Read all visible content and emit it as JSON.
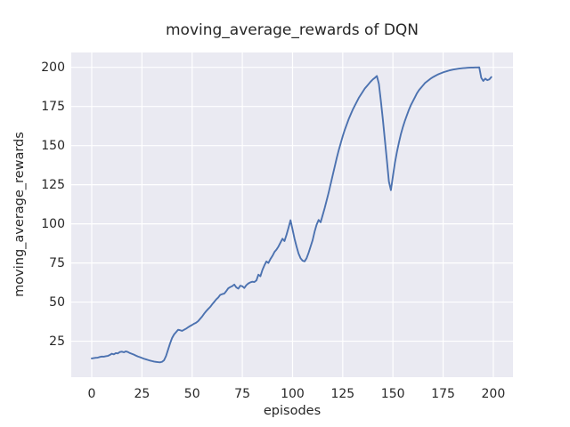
{
  "chart_data": {
    "type": "line",
    "title": "moving_average_rewards of DQN",
    "xlabel": "episodes",
    "ylabel": "moving_average_rewards",
    "xlim": [
      -10.2,
      209.8
    ],
    "ylim": [
      2,
      209.5
    ],
    "xticks": [
      0,
      25,
      50,
      75,
      100,
      125,
      150,
      175,
      200
    ],
    "yticks": [
      25,
      50,
      75,
      100,
      125,
      150,
      175,
      200
    ],
    "grid": true,
    "legend_position": "none",
    "style": {
      "plot_bg": "#EAEAF2",
      "grid_color": "#FFFFFF",
      "line_color": "#4C72B0",
      "text_color": "#262626",
      "line_width": 1.9,
      "grid_width": 1.2
    },
    "series": [
      {
        "name": "moving_average_rewards",
        "color": "#4C72B0",
        "points": [
          [
            0,
            14.0
          ],
          [
            1,
            14.2
          ],
          [
            2,
            14.4
          ],
          [
            3,
            14.5
          ],
          [
            4,
            14.9
          ],
          [
            5,
            15.2
          ],
          [
            6,
            15.1
          ],
          [
            7,
            15.4
          ],
          [
            8,
            15.6
          ],
          [
            9,
            16.2
          ],
          [
            10,
            17.0
          ],
          [
            11,
            16.6
          ],
          [
            12,
            17.4
          ],
          [
            13,
            17.2
          ],
          [
            14,
            18.1
          ],
          [
            15,
            18.3
          ],
          [
            16,
            17.9
          ],
          [
            17,
            18.5
          ],
          [
            18,
            18.1
          ],
          [
            19,
            17.4
          ],
          [
            20,
            16.9
          ],
          [
            21,
            16.4
          ],
          [
            22,
            15.8
          ],
          [
            23,
            15.2
          ],
          [
            24,
            14.8
          ],
          [
            25,
            14.3
          ],
          [
            26,
            13.8
          ],
          [
            27,
            13.4
          ],
          [
            28,
            13.0
          ],
          [
            29,
            12.6
          ],
          [
            30,
            12.3
          ],
          [
            31,
            12.0
          ],
          [
            32,
            11.8
          ],
          [
            33,
            11.6
          ],
          [
            34,
            11.5
          ],
          [
            35,
            11.8
          ],
          [
            36,
            12.8
          ],
          [
            37,
            15.5
          ],
          [
            38,
            19.5
          ],
          [
            39,
            23.5
          ],
          [
            40,
            27.0
          ],
          [
            41,
            29.3
          ],
          [
            42,
            30.8
          ],
          [
            43,
            32.3
          ],
          [
            44,
            32.0
          ],
          [
            45,
            31.6
          ],
          [
            46,
            32.3
          ],
          [
            47,
            33.0
          ],
          [
            48,
            33.9
          ],
          [
            49,
            34.7
          ],
          [
            50,
            35.4
          ],
          [
            51,
            36.2
          ],
          [
            52,
            36.8
          ],
          [
            53,
            37.8
          ],
          [
            54,
            39.3
          ],
          [
            55,
            40.8
          ],
          [
            56,
            42.6
          ],
          [
            57,
            44.2
          ],
          [
            58,
            45.6
          ],
          [
            59,
            46.9
          ],
          [
            60,
            48.6
          ],
          [
            61,
            50.1
          ],
          [
            62,
            51.7
          ],
          [
            63,
            52.9
          ],
          [
            64,
            54.6
          ],
          [
            65,
            55.1
          ],
          [
            66,
            55.4
          ],
          [
            67,
            57.0
          ],
          [
            68,
            58.8
          ],
          [
            69,
            59.6
          ],
          [
            70,
            60.2
          ],
          [
            71,
            61.2
          ],
          [
            72,
            59.4
          ],
          [
            73,
            58.6
          ],
          [
            74,
            60.5
          ],
          [
            75,
            60.1
          ],
          [
            76,
            59.0
          ],
          [
            77,
            60.8
          ],
          [
            78,
            61.9
          ],
          [
            79,
            62.6
          ],
          [
            80,
            63.0
          ],
          [
            81,
            62.8
          ],
          [
            82,
            63.8
          ],
          [
            83,
            67.5
          ],
          [
            84,
            66.5
          ],
          [
            85,
            70.5
          ],
          [
            86,
            73.5
          ],
          [
            87,
            76.0
          ],
          [
            88,
            75.0
          ],
          [
            89,
            77.5
          ],
          [
            90,
            79.5
          ],
          [
            91,
            82.0
          ],
          [
            92,
            83.5
          ],
          [
            93,
            85.5
          ],
          [
            94,
            88.0
          ],
          [
            95,
            90.5
          ],
          [
            96,
            89.0
          ],
          [
            97,
            93.0
          ],
          [
            98,
            97.5
          ],
          [
            99,
            102.3
          ],
          [
            100,
            96.5
          ],
          [
            101,
            90.5
          ],
          [
            102,
            85.5
          ],
          [
            103,
            81.0
          ],
          [
            104,
            78.0
          ],
          [
            105,
            76.5
          ],
          [
            106,
            76.0
          ],
          [
            107,
            78.0
          ],
          [
            108,
            81.5
          ],
          [
            109,
            85.5
          ],
          [
            110,
            89.5
          ],
          [
            111,
            95.0
          ],
          [
            112,
            99.5
          ],
          [
            113,
            102.5
          ],
          [
            114,
            101.0
          ],
          [
            115,
            105.5
          ],
          [
            116,
            110.0
          ],
          [
            117,
            115.0
          ],
          [
            118,
            120.0
          ],
          [
            119,
            125.5
          ],
          [
            120,
            131.0
          ],
          [
            121,
            136.5
          ],
          [
            122,
            142.0
          ],
          [
            123,
            147.0
          ],
          [
            124,
            151.5
          ],
          [
            125,
            156.0
          ],
          [
            126,
            160.0
          ],
          [
            127,
            163.5
          ],
          [
            128,
            167.0
          ],
          [
            129,
            170.0
          ],
          [
            130,
            173.0
          ],
          [
            131,
            175.5
          ],
          [
            132,
            178.0
          ],
          [
            133,
            180.5
          ],
          [
            134,
            182.5
          ],
          [
            135,
            184.5
          ],
          [
            136,
            186.5
          ],
          [
            137,
            188.0
          ],
          [
            138,
            189.5
          ],
          [
            139,
            191.0
          ],
          [
            140,
            192.3
          ],
          [
            141,
            193.3
          ],
          [
            142,
            194.5
          ],
          [
            143,
            189.5
          ],
          [
            144,
            178.5
          ],
          [
            145,
            166.5
          ],
          [
            146,
            153.5
          ],
          [
            147,
            140.5
          ],
          [
            148,
            127.0
          ],
          [
            149,
            121.5
          ],
          [
            150,
            130.5
          ],
          [
            151,
            139.0
          ],
          [
            152,
            146.0
          ],
          [
            153,
            152.0
          ],
          [
            154,
            157.5
          ],
          [
            155,
            162.0
          ],
          [
            156,
            166.0
          ],
          [
            157,
            169.5
          ],
          [
            158,
            173.0
          ],
          [
            159,
            176.0
          ],
          [
            160,
            178.5
          ],
          [
            161,
            181.0
          ],
          [
            162,
            183.5
          ],
          [
            163,
            185.5
          ],
          [
            164,
            187.0
          ],
          [
            165,
            188.5
          ],
          [
            166,
            190.0
          ],
          [
            167,
            191.0
          ],
          [
            168,
            192.0
          ],
          [
            169,
            193.0
          ],
          [
            170,
            193.8
          ],
          [
            171,
            194.5
          ],
          [
            172,
            195.2
          ],
          [
            173,
            195.8
          ],
          [
            174,
            196.3
          ],
          [
            175,
            196.8
          ],
          [
            176,
            197.2
          ],
          [
            177,
            197.6
          ],
          [
            178,
            198.0
          ],
          [
            179,
            198.3
          ],
          [
            180,
            198.6
          ],
          [
            181,
            198.8
          ],
          [
            182,
            199.0
          ],
          [
            183,
            199.2
          ],
          [
            184,
            199.4
          ],
          [
            185,
            199.5
          ],
          [
            186,
            199.6
          ],
          [
            187,
            199.7
          ],
          [
            188,
            199.8
          ],
          [
            189,
            199.85
          ],
          [
            190,
            199.9
          ],
          [
            191,
            199.93
          ],
          [
            192,
            199.96
          ],
          [
            193,
            200.0
          ],
          [
            194,
            193.3
          ],
          [
            195,
            191.3
          ],
          [
            196,
            192.8
          ],
          [
            197,
            191.8
          ],
          [
            198,
            192.3
          ],
          [
            199,
            193.8
          ]
        ]
      }
    ]
  }
}
